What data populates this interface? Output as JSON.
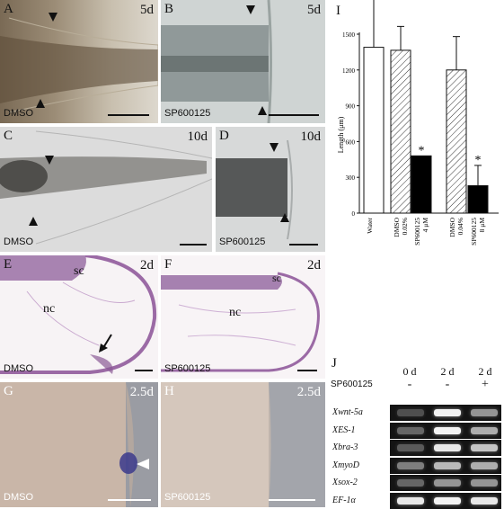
{
  "panels": {
    "A": {
      "letter": "A",
      "time": "5d",
      "condition": "DMSO"
    },
    "B": {
      "letter": "B",
      "time": "5d",
      "condition": "SP600125"
    },
    "C": {
      "letter": "C",
      "time": "10d",
      "condition": "DMSO"
    },
    "D": {
      "letter": "D",
      "time": "10d",
      "condition": "SP600125"
    },
    "E": {
      "letter": "E",
      "time": "2d",
      "condition": "DMSO",
      "label_sc": "sc",
      "label_nc": "nc"
    },
    "F": {
      "letter": "F",
      "time": "2d",
      "condition": "SP600125",
      "label_sc": "sc",
      "label_nc": "nc"
    },
    "G": {
      "letter": "G",
      "time": "2.5d",
      "condition": "DMSO"
    },
    "H": {
      "letter": "H",
      "time": "2.5d",
      "condition": "SP600125"
    }
  },
  "chart_I": {
    "letter": "I",
    "chart_data": {
      "type": "bar",
      "ylabel": "Length (μm)",
      "ylim": [
        0,
        1500
      ],
      "yticks": [
        "0",
        "300",
        "600",
        "900",
        "1200",
        "1500"
      ],
      "categories": [
        {
          "line1": "Water",
          "line2": ""
        },
        {
          "line1": "DMSO",
          "line2": "0.02%"
        },
        {
          "line1": "SP600125",
          "line2": "4 μM"
        },
        {
          "line1": "DMSO",
          "line2": "0.04%"
        },
        {
          "line1": "SP600125",
          "line2": "8 μM"
        }
      ],
      "values": [
        1390,
        1365,
        480,
        1200,
        230
      ],
      "errors": [
        430,
        200,
        0,
        280,
        170
      ],
      "fills": [
        "white",
        "hatch",
        "black",
        "hatch",
        "black"
      ],
      "significance": [
        "",
        "",
        "*",
        "",
        "*"
      ]
    }
  },
  "gel_J": {
    "letter": "J",
    "lanes": [
      "0 d",
      "2 d",
      "2 d"
    ],
    "treatment_label": "SP600125",
    "treatment": [
      "-",
      "-",
      "+"
    ],
    "genes": [
      "Xwnt-5a",
      "XES-1",
      "Xbra-3",
      "XmyoD",
      "Xsox-2",
      "EF-1α"
    ],
    "band_intensity": [
      [
        0.25,
        0.95,
        0.55
      ],
      [
        0.35,
        0.95,
        0.65
      ],
      [
        0.3,
        0.9,
        0.75
      ],
      [
        0.45,
        0.7,
        0.65
      ],
      [
        0.35,
        0.55,
        0.55
      ],
      [
        0.9,
        0.95,
        0.9
      ]
    ]
  }
}
